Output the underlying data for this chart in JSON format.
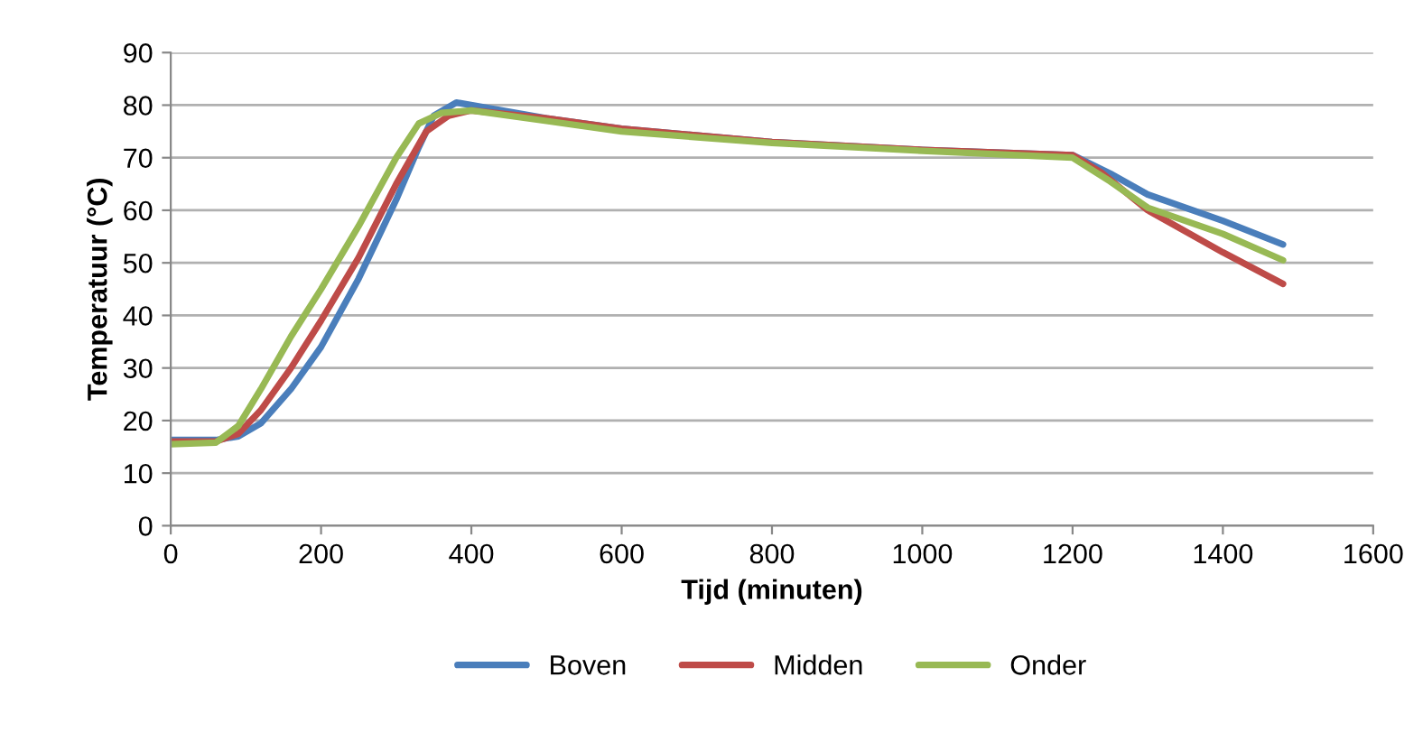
{
  "chart_data": {
    "type": "line",
    "xlabel": "Tijd (minuten)",
    "ylabel": "Temperatuur (°C)",
    "xlim": [
      0,
      1600
    ],
    "xticks": [
      0,
      200,
      400,
      600,
      800,
      1000,
      1200,
      1400,
      1600
    ],
    "ylim": [
      0,
      90
    ],
    "yticks": [
      0,
      10,
      20,
      30,
      40,
      50,
      60,
      70,
      80,
      90
    ],
    "grid": "y",
    "legend": "bottom",
    "marker": "none",
    "line_style": "solid",
    "series": [
      {
        "name": "Boven",
        "color": "#4a7ebb",
        "x": [
          0,
          60,
          90,
          120,
          160,
          200,
          250,
          300,
          330,
          350,
          380,
          420,
          500,
          600,
          800,
          1000,
          1200,
          1250,
          1300,
          1400,
          1480
        ],
        "values": [
          16.3,
          16.3,
          17,
          19.5,
          26,
          34,
          47,
          62,
          72,
          78,
          80.5,
          79.5,
          77.5,
          75.5,
          73,
          71.5,
          70.5,
          67,
          63,
          58,
          53.5
        ]
      },
      {
        "name": "Midden",
        "color": "#be4b48",
        "x": [
          0,
          60,
          90,
          120,
          160,
          200,
          250,
          300,
          340,
          370,
          400,
          500,
          600,
          800,
          1000,
          1200,
          1240,
          1300,
          1400,
          1480
        ],
        "values": [
          16,
          16,
          17.5,
          22,
          30,
          39,
          51,
          65,
          75,
          78,
          79,
          77.5,
          75.5,
          73,
          71.5,
          70.5,
          67,
          60,
          52,
          46
        ]
      },
      {
        "name": "Onder",
        "color": "#98b954",
        "x": [
          0,
          60,
          90,
          120,
          160,
          200,
          250,
          300,
          330,
          360,
          400,
          500,
          600,
          800,
          1000,
          1200,
          1250,
          1300,
          1400,
          1480
        ],
        "values": [
          15.5,
          15.8,
          19,
          26,
          36,
          45,
          57,
          70,
          76.5,
          78.5,
          79,
          77,
          75,
          72.8,
          71.3,
          70,
          65.5,
          60.5,
          55.5,
          50.5
        ]
      }
    ]
  }
}
